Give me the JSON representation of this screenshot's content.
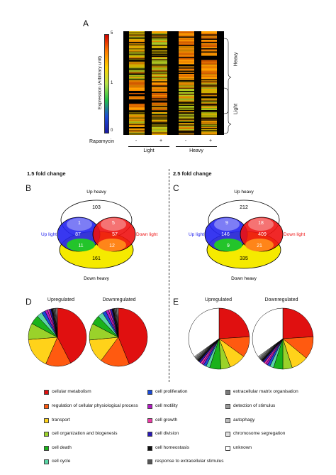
{
  "panel_a": {
    "letter": "A",
    "colorbar": {
      "label": "Expression (Arbitrary unit)",
      "ticks": [
        "5",
        "1",
        "0"
      ],
      "stops": [
        "#d40000",
        "#ff7a00",
        "#ffd200",
        "#b6e24a",
        "#22c24a",
        "#1c4bd6",
        "#1a1aa0"
      ]
    },
    "rapamycin_label": "Rapamycin",
    "columns": [
      "-",
      "+",
      "-",
      "+"
    ],
    "groups": [
      "Light",
      "Heavy"
    ],
    "side_labels": [
      "Heavy",
      "Light"
    ]
  },
  "fold_titles": {
    "left": "1.5 fold change",
    "right": "2.5 fold change"
  },
  "venn_b": {
    "letter": "B",
    "labels": {
      "up_heavy": "Up heavy",
      "up_light": "Up light",
      "down_light": "Down light",
      "down_heavy": "Down heavy"
    },
    "counts": {
      "up_heavy_only": "103",
      "ul_uh": "1",
      "dl_uh": "5",
      "up_light": "87",
      "down_light": "57",
      "ul_dh": "11",
      "dl_dh": "12",
      "down_heavy_only": "161"
    }
  },
  "venn_c": {
    "letter": "C",
    "labels": {
      "up_heavy": "Up heavy",
      "up_light": "Up light",
      "down_light": "Down light",
      "down_heavy": "Down heavy"
    },
    "counts": {
      "up_heavy_only": "212",
      "ul_uh": "9",
      "dl_uh": "18",
      "up_light": "146",
      "down_light": "409",
      "ul_dh": "9",
      "dl_dh": "21",
      "down_heavy_only": "335"
    }
  },
  "pies_d": {
    "letter": "D",
    "titles": [
      "Upregulated",
      "Downregulated"
    ]
  },
  "pies_e": {
    "letter": "E",
    "titles": [
      "Upregulated",
      "Downregulated"
    ]
  },
  "categories": [
    {
      "label": "cellular metabolism",
      "color": "#e01010"
    },
    {
      "label": "regulation of cellular physiological process",
      "color": "#ff5a10"
    },
    {
      "label": "transport",
      "color": "#ffd21a"
    },
    {
      "label": "cell organization and biogenesis",
      "color": "#9ad22a"
    },
    {
      "label": "cell death",
      "color": "#1ab21a"
    },
    {
      "label": "cell cycle",
      "color": "#5ad6a6"
    },
    {
      "label": "cell proliferation",
      "color": "#1a4ad6"
    },
    {
      "label": "cell motility",
      "color": "#b21ac2"
    },
    {
      "label": "cell growth",
      "color": "#ee3aa6"
    },
    {
      "label": "cell division",
      "color": "#2a1ab2"
    },
    {
      "label": "cell homeostasis",
      "color": "#111111"
    },
    {
      "label": "response to extracellular stimulus",
      "color": "#555555"
    },
    {
      "label": "extracellular matrix organisation",
      "color": "#7a7a7a"
    },
    {
      "label": "detection of stimulus",
      "color": "#9a9a9a"
    },
    {
      "label": "autophagy",
      "color": "#bdbdbd"
    },
    {
      "label": "chromosome segregation",
      "color": "#dedede"
    },
    {
      "label": "unknown",
      "color": "#ffffff"
    }
  ],
  "chart_data": [
    {
      "type": "pie",
      "title": "Upregulated",
      "panel": "D",
      "values": [
        42,
        14,
        17,
        9,
        5,
        3,
        2,
        1.5,
        1,
        1,
        1,
        0.5,
        0.5,
        0.5,
        0.5,
        0.5,
        0
      ]
    },
    {
      "type": "pie",
      "title": "Downregulated",
      "panel": "D",
      "values": [
        43,
        16,
        13,
        9,
        5,
        3,
        2,
        1.5,
        1,
        1,
        1,
        0.5,
        0.5,
        0.5,
        0.5,
        0.5,
        0
      ]
    },
    {
      "type": "pie",
      "title": "Upregulated",
      "panel": "E",
      "values": [
        24,
        11,
        9,
        5,
        6,
        2,
        1.5,
        1,
        1,
        1,
        1,
        0.5,
        0.5,
        0.5,
        0.5,
        0.5,
        35
      ]
    },
    {
      "type": "pie",
      "title": "Downregulated",
      "panel": "E",
      "values": [
        24,
        12,
        9,
        5,
        5,
        2,
        1.5,
        1,
        1,
        1,
        1,
        0.5,
        0.5,
        0.5,
        0.5,
        0.5,
        35
      ]
    }
  ]
}
